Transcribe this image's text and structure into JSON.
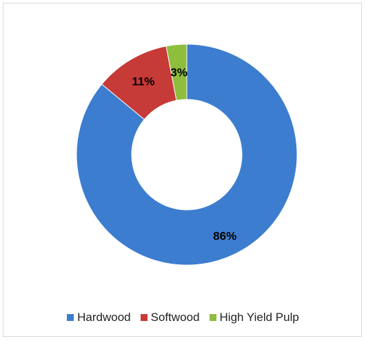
{
  "chart_data": {
    "type": "pie",
    "donut": true,
    "categories": [
      "Hardwood",
      "Softwood",
      "High Yield Pulp"
    ],
    "values": [
      86,
      11,
      3
    ],
    "labels": [
      "86%",
      "11%",
      "3%"
    ],
    "colors": [
      "#3c7dcf",
      "#c63a37",
      "#8fbd3d"
    ],
    "legend_position": "bottom",
    "title": ""
  }
}
